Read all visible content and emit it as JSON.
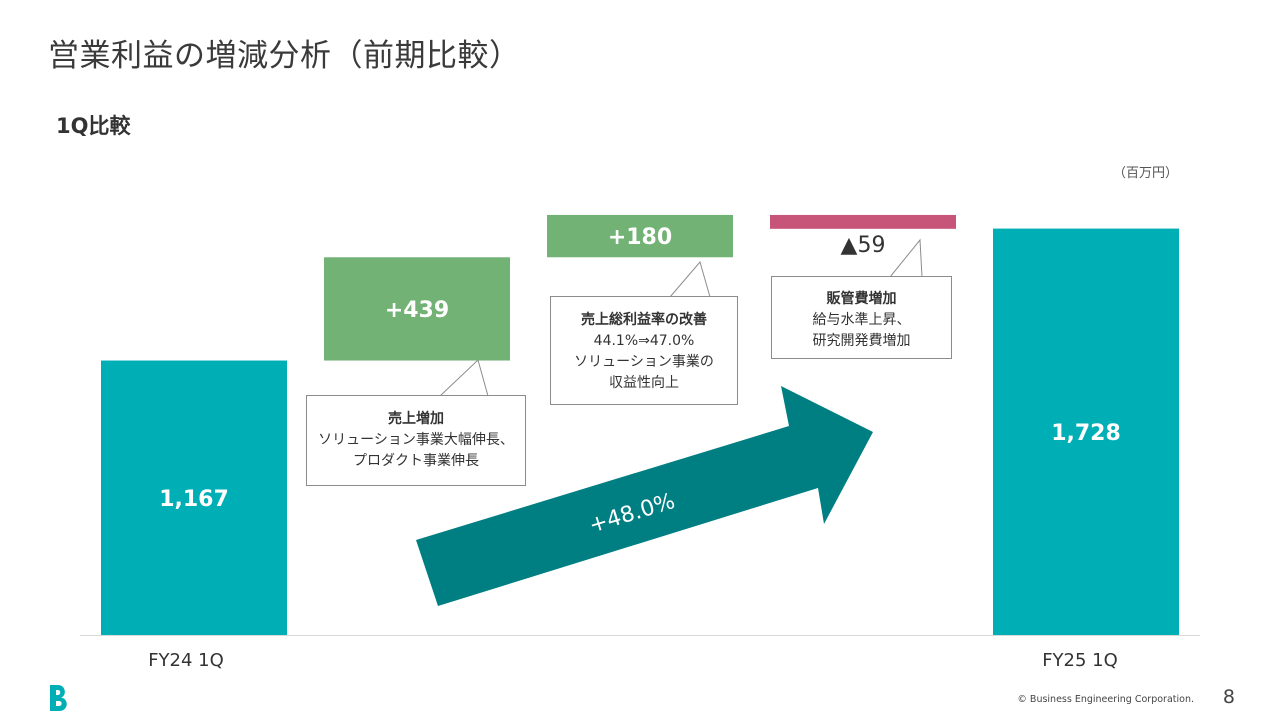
{
  "page": {
    "title": "営業利益の増減分析（前期比較）",
    "subtitle": "1Q比較",
    "unit": "（百万円）",
    "copyright": "© Business Engineering Corporation.",
    "page_number": "8",
    "colors": {
      "base": "#00afb5",
      "increase": "#72b275",
      "decrease": "#c7557a",
      "arrow": "#007f83"
    }
  },
  "chart_data": {
    "type": "bar",
    "categories": [
      "FY24 1Q",
      "",
      "",
      "",
      "FY25 1Q"
    ],
    "steps": [
      {
        "kind": "total",
        "label": "FY24 1Q",
        "value": 1167,
        "display": "1,167"
      },
      {
        "kind": "increase",
        "label": "",
        "value": 439,
        "display": "+439"
      },
      {
        "kind": "increase",
        "label": "",
        "value": 180,
        "display": "+180"
      },
      {
        "kind": "decrease",
        "label": "",
        "value": -59,
        "display": "▲59"
      },
      {
        "kind": "total",
        "label": "FY25 1Q",
        "value": 1728,
        "display": "1,728"
      }
    ],
    "growth_label": "+48.0%",
    "callouts": [
      {
        "title": "売上増加",
        "lines": [
          "ソリューション事業大幅伸長、",
          "プロダクト事業伸長"
        ]
      },
      {
        "title": "売上総利益率の改善",
        "lines": [
          "44.1%⇒47.0%",
          "ソリューション事業の",
          "収益性向上"
        ]
      },
      {
        "title": "販管費増加",
        "lines": [
          "給与水準上昇、",
          "研究開発費増加"
        ]
      }
    ],
    "xlabel": "",
    "ylabel": "",
    "ylim": [
      0,
      1790
    ],
    "grid": false,
    "legend": "none"
  }
}
